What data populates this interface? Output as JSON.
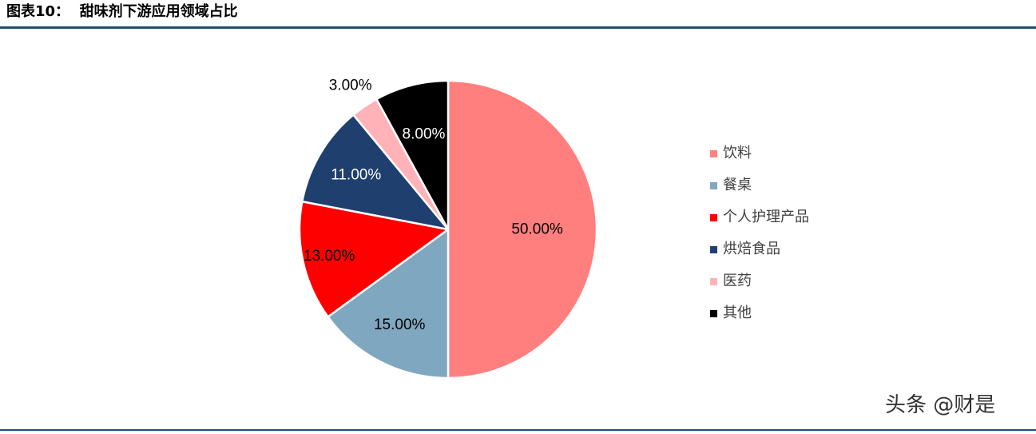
{
  "header": {
    "title": "图表10：  甜味剂下游应用领域占比"
  },
  "chart_data": {
    "type": "pie",
    "categories": [
      "饮料",
      "餐桌",
      "个人护理产品",
      "烘焙食品",
      "医药",
      "其他"
    ],
    "values": [
      50,
      15,
      13,
      11,
      3,
      8
    ],
    "data_labels": [
      "50.00%",
      "15.00%",
      "13.00%",
      "11.00%",
      "3.00%",
      "8.00%"
    ],
    "colors": [
      "#ff7f7f",
      "#7fa7c0",
      "#ff0000",
      "#1f3f6f",
      "#ffb3b8",
      "#000000"
    ],
    "label_colors": [
      "#000000",
      "#000000",
      "#000000",
      "#ffffff",
      "#000000",
      "#ffffff"
    ],
    "start_angle": "12 o'clock",
    "direction": "clockwise",
    "legend_position": "right"
  },
  "watermark": {
    "text": "头条 @财是"
  }
}
